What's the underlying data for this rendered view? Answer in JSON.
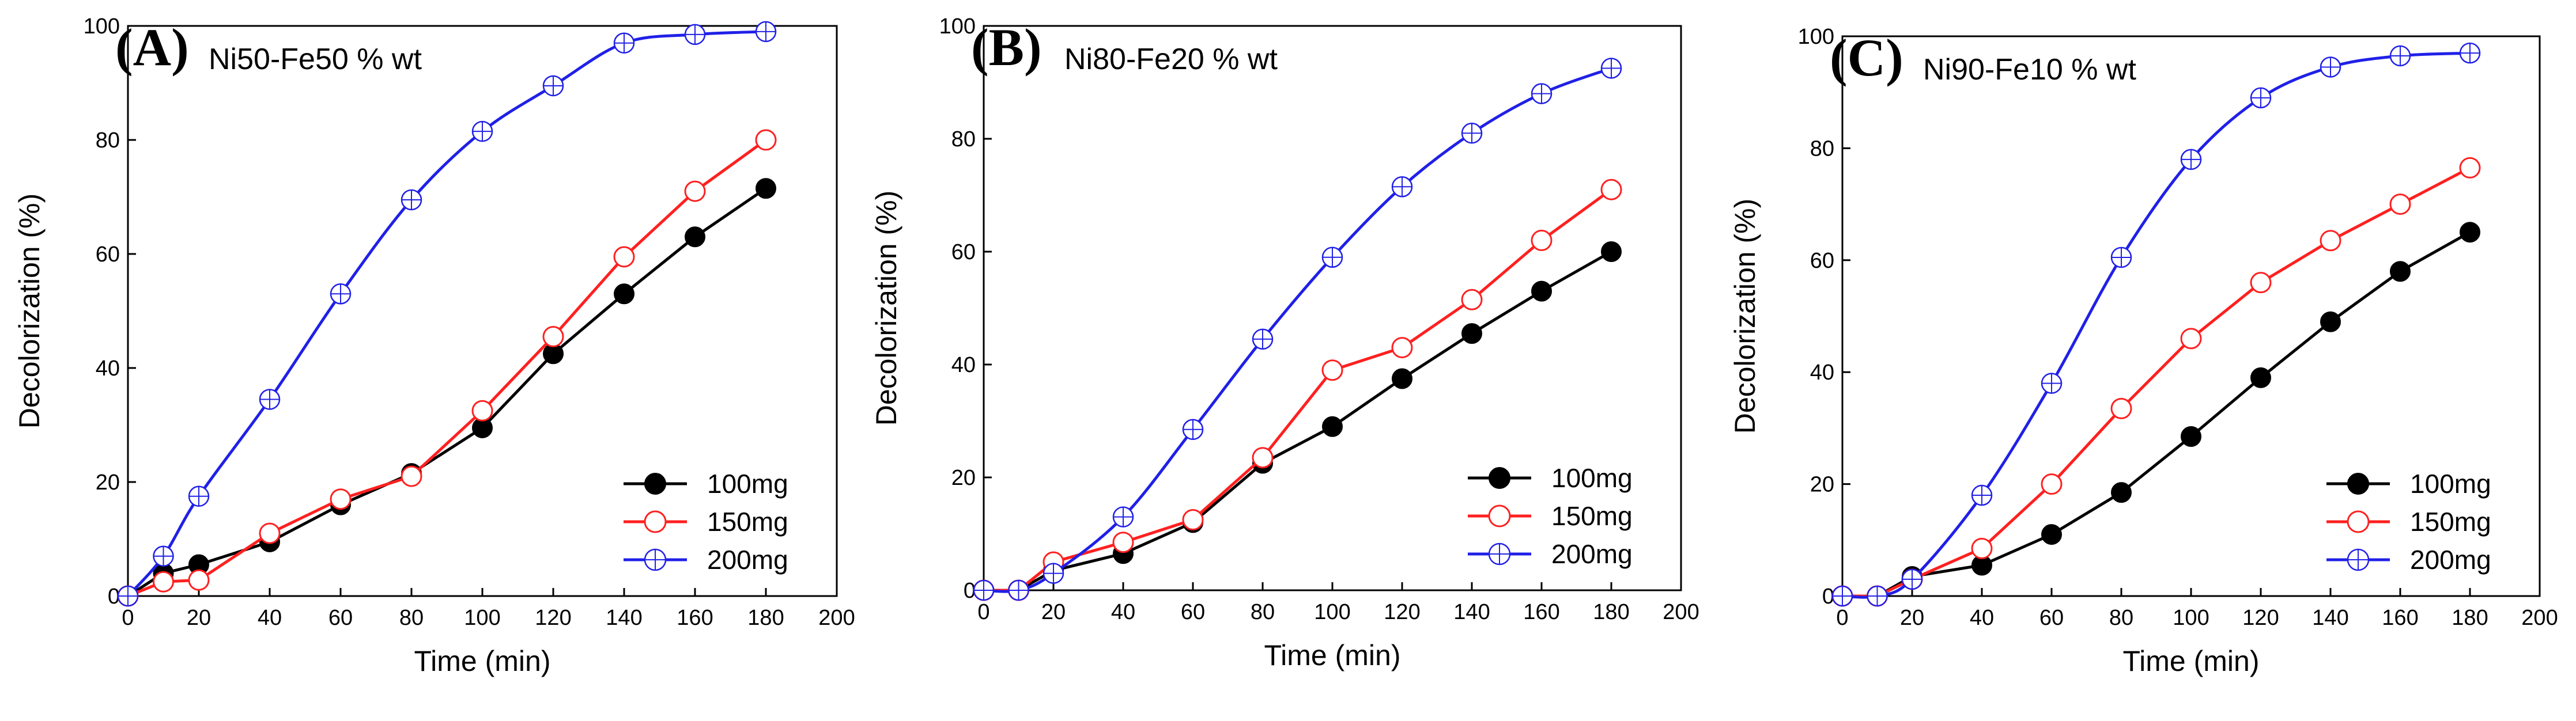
{
  "figure": {
    "background": "#ffffff"
  },
  "styles": {
    "100mg": {
      "color": "#000000",
      "marker": "filled-circle"
    },
    "150mg": {
      "color": "#ff2020",
      "marker": "open-circle"
    },
    "200mg": {
      "color": "#2020e8",
      "marker": "crossed-circle"
    }
  },
  "chart_data": [
    {
      "type": "line",
      "panel_letter": "(A)",
      "title": "Ni50-Fe50 % wt",
      "xlabel": "Time (min)",
      "ylabel": "Decolorization (%)",
      "xlim": [
        0,
        200
      ],
      "ylim": [
        0,
        100
      ],
      "xticks": [
        0,
        20,
        40,
        60,
        80,
        100,
        120,
        140,
        160,
        180,
        200
      ],
      "yticks": [
        0,
        20,
        40,
        60,
        80,
        100
      ],
      "legend": "bottom-right",
      "series": [
        {
          "name": "100mg",
          "x": [
            0,
            10,
            20,
            40,
            60,
            80,
            100,
            120,
            140,
            160,
            180
          ],
          "values": [
            0,
            4,
            5.5,
            9.5,
            16,
            21.5,
            29.5,
            42.5,
            53,
            63,
            71.5
          ]
        },
        {
          "name": "150mg",
          "x": [
            0,
            10,
            20,
            40,
            60,
            80,
            100,
            120,
            140,
            160,
            180
          ],
          "values": [
            0,
            2.5,
            2.8,
            11,
            17,
            21,
            32.5,
            45.5,
            59.5,
            71,
            80
          ]
        },
        {
          "name": "200mg",
          "x": [
            0,
            10,
            20,
            40,
            60,
            80,
            100,
            120,
            140,
            160,
            180
          ],
          "values": [
            0,
            7,
            17.5,
            34.5,
            53,
            69.5,
            81.5,
            89.5,
            97,
            98.5,
            99
          ]
        }
      ]
    },
    {
      "type": "line",
      "panel_letter": "(B)",
      "title": "Ni80-Fe20 % wt",
      "xlabel": "Time (min)",
      "ylabel": "Decolorization (%)",
      "xlim": [
        0,
        200
      ],
      "ylim": [
        0,
        100
      ],
      "xticks": [
        0,
        20,
        40,
        60,
        80,
        100,
        120,
        140,
        160,
        180,
        200
      ],
      "yticks": [
        0,
        20,
        40,
        60,
        80,
        100
      ],
      "legend": "bottom-right",
      "series": [
        {
          "name": "100mg",
          "x": [
            0,
            10,
            20,
            40,
            60,
            80,
            100,
            120,
            140,
            160,
            180
          ],
          "values": [
            0,
            0,
            3.5,
            6.5,
            12,
            22.5,
            29,
            37.5,
            45.5,
            53,
            60
          ]
        },
        {
          "name": "150mg",
          "x": [
            0,
            10,
            20,
            40,
            60,
            80,
            100,
            120,
            140,
            160,
            180
          ],
          "values": [
            0,
            0,
            5,
            8.5,
            12.5,
            23.5,
            39,
            43,
            51.5,
            62,
            71
          ]
        },
        {
          "name": "200mg",
          "x": [
            0,
            10,
            20,
            40,
            60,
            80,
            100,
            120,
            140,
            160,
            180
          ],
          "values": [
            0,
            0,
            3,
            13,
            28.5,
            44.5,
            59,
            71.5,
            81,
            88,
            92.5
          ]
        }
      ]
    },
    {
      "type": "line",
      "panel_letter": "(C)",
      "title": "Ni90-Fe10 % wt",
      "xlabel": "Time (min)",
      "ylabel": "Decolorization (%)",
      "xlim": [
        0,
        200
      ],
      "ylim": [
        0,
        100
      ],
      "xticks": [
        0,
        20,
        40,
        60,
        80,
        100,
        120,
        140,
        160,
        180,
        200
      ],
      "yticks": [
        0,
        20,
        40,
        60,
        80,
        100
      ],
      "legend": "bottom-right",
      "series": [
        {
          "name": "100mg",
          "x": [
            0,
            10,
            20,
            40,
            60,
            80,
            100,
            120,
            140,
            160,
            180
          ],
          "values": [
            0,
            0,
            3.5,
            5.5,
            11,
            18.5,
            28.5,
            39,
            49,
            58,
            65
          ]
        },
        {
          "name": "150mg",
          "x": [
            0,
            10,
            20,
            40,
            60,
            80,
            100,
            120,
            140,
            160,
            180
          ],
          "values": [
            0,
            0,
            3,
            8.5,
            20,
            33.5,
            46,
            56,
            63.5,
            70,
            76.5
          ]
        },
        {
          "name": "200mg",
          "x": [
            0,
            10,
            20,
            40,
            60,
            80,
            100,
            120,
            140,
            160,
            180
          ],
          "values": [
            0,
            0,
            3,
            18,
            38,
            60.5,
            78,
            89,
            94.5,
            96.5,
            97
          ]
        }
      ]
    }
  ]
}
